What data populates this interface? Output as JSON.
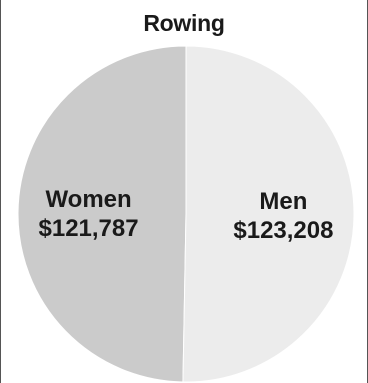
{
  "chart_data": {
    "type": "pie",
    "title": "Rowing",
    "slices": [
      {
        "label": "Women",
        "value_label": "$121,787",
        "value": 121787,
        "color": "#cbcbcb"
      },
      {
        "label": "Men",
        "value_label": "$123,208",
        "value": 123208,
        "color": "#ececec"
      }
    ]
  }
}
